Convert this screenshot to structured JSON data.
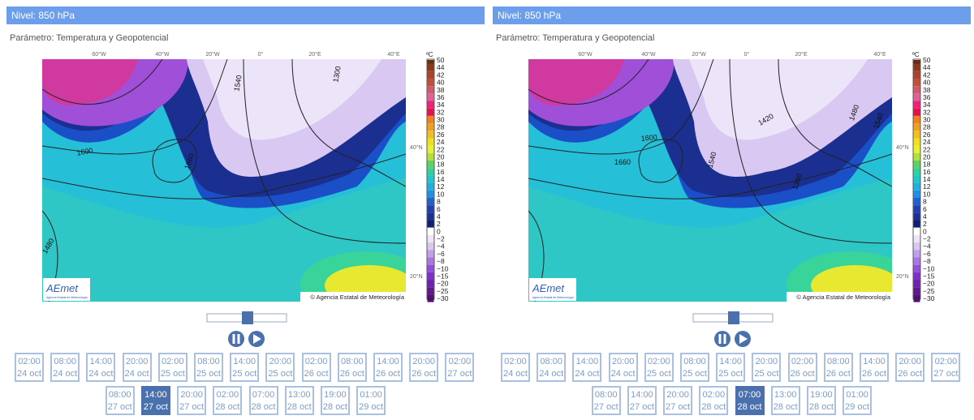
{
  "panels": [
    {
      "level": "Nivel: 850 hPa",
      "parameter": "Parámetro: Temperatura y Geopotencial",
      "map": {
        "lon_labels": [
          "60°W",
          "40°W",
          "20°W",
          "0°",
          "20°E",
          "40°E"
        ],
        "lat_labels": [
          "40°N",
          "20°N"
        ],
        "contour_labels": [
          "1600",
          "1660",
          "1540",
          "1480",
          "1300"
        ],
        "copyright": "© Agencia Estatal de Meteorología",
        "logo": "AEmet",
        "logo_sub": "Agencia Estatal de Meteorología"
      },
      "colorbar": {
        "unit": "ºC",
        "labels": [
          "50",
          "44",
          "42",
          "40",
          "38",
          "36",
          "34",
          "32",
          "30",
          "28",
          "26",
          "24",
          "22",
          "20",
          "18",
          "16",
          "14",
          "12",
          "10",
          "8",
          "6",
          "4",
          "2",
          "0",
          "−2",
          "−4",
          "−6",
          "−8",
          "−10",
          "−15",
          "−20",
          "−25",
          "−30"
        ]
      },
      "times": [
        {
          "time": "02:00",
          "date": "24 oct"
        },
        {
          "time": "08:00",
          "date": "24 oct"
        },
        {
          "time": "14:00",
          "date": "24 oct"
        },
        {
          "time": "20:00",
          "date": "24 oct"
        },
        {
          "time": "02:00",
          "date": "25 oct"
        },
        {
          "time": "08:00",
          "date": "25 oct"
        },
        {
          "time": "14:00",
          "date": "25 oct"
        },
        {
          "time": "20:00",
          "date": "25 oct"
        },
        {
          "time": "02:00",
          "date": "26 oct"
        },
        {
          "time": "08:00",
          "date": "26 oct"
        },
        {
          "time": "14:00",
          "date": "26 oct"
        },
        {
          "time": "20:00",
          "date": "26 oct"
        },
        {
          "time": "02:00",
          "date": "27 oct"
        },
        {
          "time": "08:00",
          "date": "27 oct"
        },
        {
          "time": "14:00",
          "date": "27 oct"
        },
        {
          "time": "20:00",
          "date": "27 oct"
        },
        {
          "time": "02:00",
          "date": "28 oct"
        },
        {
          "time": "07:00",
          "date": "28 oct"
        },
        {
          "time": "13:00",
          "date": "28 oct"
        },
        {
          "time": "19:00",
          "date": "28 oct"
        },
        {
          "time": "01:00",
          "date": "29 oct"
        }
      ],
      "selected": 14
    },
    {
      "level": "Nivel: 850 hPa",
      "parameter": "Parámetro: Temperatura y Geopotencial",
      "map": {
        "lon_labels": [
          "60°W",
          "40°W",
          "20°W",
          "0°",
          "20°E",
          "40°E"
        ],
        "lat_labels": [
          "40°N",
          "20°N"
        ],
        "contour_labels": [
          "1600",
          "1660",
          "1540",
          "1420",
          "1480",
          "1540",
          "1360"
        ],
        "copyright": "© Agencia Estatal de Meteorología",
        "logo": "AEmet",
        "logo_sub": "Agencia Estatal de Meteorología"
      },
      "colorbar": {
        "unit": "ºC",
        "labels": [
          "50",
          "44",
          "42",
          "40",
          "38",
          "36",
          "34",
          "32",
          "30",
          "28",
          "26",
          "24",
          "22",
          "20",
          "18",
          "16",
          "14",
          "12",
          "10",
          "8",
          "6",
          "4",
          "2",
          "0",
          "−2",
          "−4",
          "−6",
          "−8",
          "−10",
          "−15",
          "−20",
          "−25",
          "−30"
        ]
      },
      "times": [
        {
          "time": "02:00",
          "date": "24 oct"
        },
        {
          "time": "08:00",
          "date": "24 oct"
        },
        {
          "time": "14:00",
          "date": "24 oct"
        },
        {
          "time": "20:00",
          "date": "24 oct"
        },
        {
          "time": "02:00",
          "date": "25 oct"
        },
        {
          "time": "08:00",
          "date": "25 oct"
        },
        {
          "time": "14:00",
          "date": "25 oct"
        },
        {
          "time": "20:00",
          "date": "25 oct"
        },
        {
          "time": "02:00",
          "date": "26 oct"
        },
        {
          "time": "08:00",
          "date": "26 oct"
        },
        {
          "time": "14:00",
          "date": "26 oct"
        },
        {
          "time": "20:00",
          "date": "26 oct"
        },
        {
          "time": "02:00",
          "date": "27 oct"
        },
        {
          "time": "08:00",
          "date": "27 oct"
        },
        {
          "time": "14:00",
          "date": "27 oct"
        },
        {
          "time": "20:00",
          "date": "27 oct"
        },
        {
          "time": "02:00",
          "date": "28 oct"
        },
        {
          "time": "07:00",
          "date": "28 oct"
        },
        {
          "time": "13:00",
          "date": "28 oct"
        },
        {
          "time": "19:00",
          "date": "28 oct"
        },
        {
          "time": "01:00",
          "date": "29 oct"
        }
      ],
      "selected": 17
    }
  ]
}
